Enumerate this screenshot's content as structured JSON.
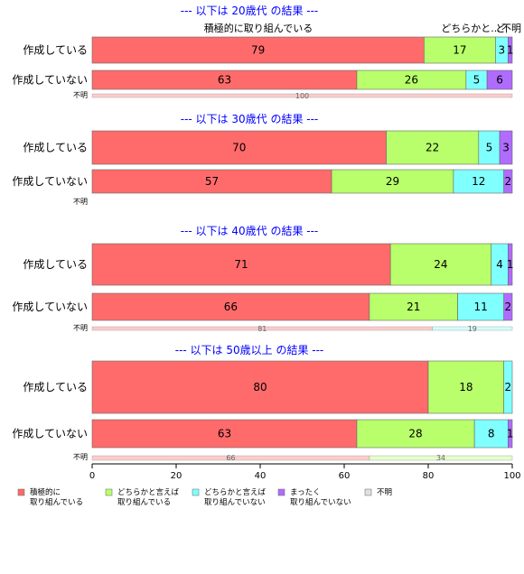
{
  "chart_data": {
    "type": "bar",
    "orientation": "horizontal",
    "stacked": "percent",
    "xlim": [
      0,
      100
    ],
    "xticks": [
      0,
      20,
      40,
      60,
      80,
      100
    ],
    "legend_position": "bottom",
    "legend": [
      {
        "key": "s1",
        "lines": [
          "積極的に",
          "取り組んでいる"
        ],
        "color": "#ff6b6b"
      },
      {
        "key": "s2",
        "lines": [
          "どちらかと言えば",
          "取り組んでいる"
        ],
        "color": "#b8ff6b"
      },
      {
        "key": "s3",
        "lines": [
          "どちらかと言えば",
          "取り組んでいない"
        ],
        "color": "#80ffff"
      },
      {
        "key": "s4",
        "lines": [
          "まったく",
          "取り組んでいない"
        ],
        "color": "#b06bff"
      },
      {
        "key": "s5",
        "lines": [
          "不明"
        ],
        "color": "#e0e0e0"
      }
    ],
    "panels": [
      {
        "title": "--- 以下は 20歳代 の結果 ---",
        "top_labels": [
          "積極的に取り組んでいる",
          "どちらかと...",
          "ど",
          "不明"
        ],
        "rows": [
          {
            "label": "作成している",
            "values": [
              79,
              17,
              3,
              1
            ]
          },
          {
            "label": "作成していない",
            "values": [
              63,
              26,
              5,
              6
            ]
          }
        ],
        "unknown_row": {
          "label": "不明",
          "values": [
            100
          ]
        }
      },
      {
        "title": "--- 以下は 30歳代 の結果 ---",
        "rows": [
          {
            "label": "作成している",
            "values": [
              70,
              22,
              5,
              3
            ]
          },
          {
            "label": "作成していない",
            "values": [
              57,
              29,
              12,
              2
            ]
          }
        ],
        "unknown_row": {
          "label": "不明",
          "values": []
        }
      },
      {
        "title": "--- 以下は 40歳代 の結果 ---",
        "rows": [
          {
            "label": "作成している",
            "values": [
              71,
              24,
              4,
              1
            ]
          },
          {
            "label": "作成していない",
            "values": [
              66,
              21,
              11,
              2
            ]
          }
        ],
        "unknown_row": {
          "label": "不明",
          "values": [
            81,
            0,
            19
          ]
        }
      },
      {
        "title": "--- 以下は 50歳以上 の結果 ---",
        "rows": [
          {
            "label": "作成している",
            "values": [
              80,
              18,
              2
            ]
          },
          {
            "label": "作成していない",
            "values": [
              63,
              28,
              8,
              1
            ]
          }
        ],
        "unknown_row": {
          "label": "不明",
          "values": [
            66,
            34
          ]
        }
      }
    ]
  }
}
